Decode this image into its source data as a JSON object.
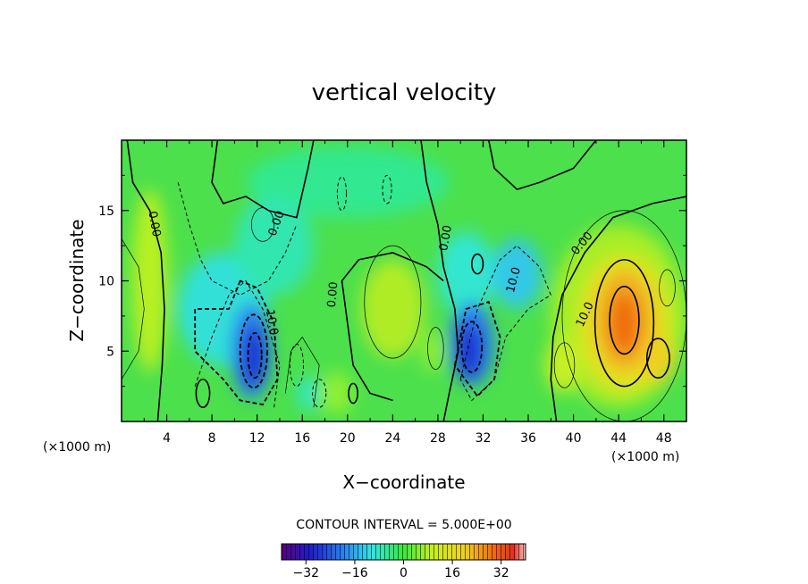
{
  "chart_data": {
    "type": "contour",
    "title": "vertical velocity",
    "xlabel": "X−coordinate",
    "ylabel": "Z−coordinate",
    "x_unit_label": "(×1000 m)",
    "x_unit_label_right": "(×1000 m)",
    "x_range": [
      0,
      50
    ],
    "y_range": [
      0,
      20
    ],
    "x_ticks": [
      4,
      8,
      12,
      16,
      20,
      24,
      28,
      32,
      36,
      40,
      44,
      48
    ],
    "y_ticks": [
      5,
      10,
      15
    ],
    "contour_interval_text": "CONTOUR INTERVAL = 5.000E+00",
    "colorbar": {
      "range": [
        -40,
        40
      ],
      "ticks": [
        -32,
        -16,
        0,
        16,
        32
      ],
      "tick_labels": [
        "−32",
        "−16",
        "0",
        "16",
        "32"
      ]
    },
    "contour_labels": [
      {
        "text": "0.00",
        "x": 2.6,
        "y": 14.0,
        "angle": 80
      },
      {
        "text": "0.00",
        "x": 14.0,
        "y": 14.0,
        "angle": -70
      },
      {
        "text": "10.0",
        "x": 13.0,
        "y": 7.0,
        "angle": 80
      },
      {
        "text": "0.00",
        "x": 19.0,
        "y": 9.0,
        "angle": -85
      },
      {
        "text": "0.00",
        "x": 29.0,
        "y": 13.0,
        "angle": -80
      },
      {
        "text": "10.0",
        "x": 35.0,
        "y": 10.0,
        "angle": -75
      },
      {
        "text": "0.00",
        "x": 41.0,
        "y": 12.5,
        "angle": -50
      },
      {
        "text": "10.0",
        "x": 41.3,
        "y": 7.5,
        "angle": -65
      }
    ],
    "features": [
      {
        "type": "min",
        "x": 11.5,
        "y": 5.0,
        "value": -36
      },
      {
        "type": "min",
        "x": 31.0,
        "y": 5.5,
        "value": -32
      },
      {
        "type": "max",
        "x": 44.5,
        "y": 7.0,
        "value": 28
      },
      {
        "type": "max",
        "x": 24.0,
        "y": 8.0,
        "value": 6
      },
      {
        "type": "min",
        "x": 35.0,
        "y": 10.5,
        "value": -14
      }
    ]
  }
}
